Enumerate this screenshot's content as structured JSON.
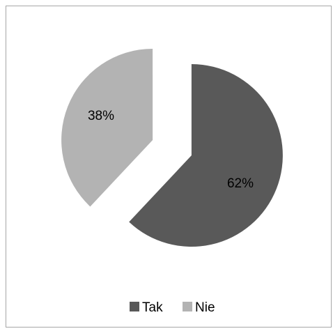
{
  "chart_data": {
    "type": "pie",
    "categories": [
      "Tak",
      "Nie"
    ],
    "values": [
      62,
      38
    ],
    "data_labels": [
      "62%",
      "38%"
    ],
    "colors": [
      "#595959",
      "#b3b3b3"
    ],
    "exploded": true,
    "legend_position": "bottom"
  }
}
